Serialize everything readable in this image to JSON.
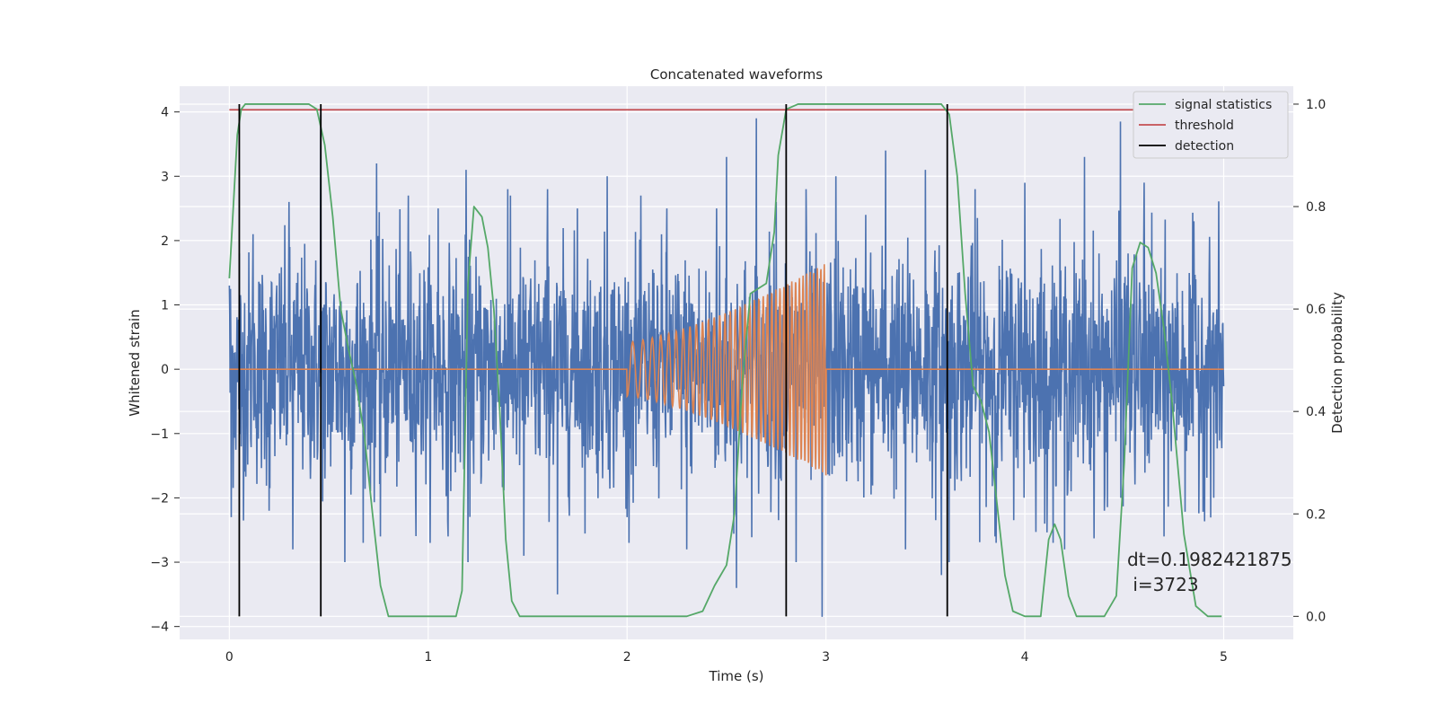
{
  "chart_data": {
    "type": "line",
    "title": "Concatenated waveforms",
    "xlabel": "Time (s)",
    "ylabel_left": "Whitened strain",
    "ylabel_right": "Detection probability",
    "xlim": [
      -0.25,
      5.35
    ],
    "ylim_left": [
      -4.2,
      4.4
    ],
    "ylim_right": [
      -0.045,
      1.035
    ],
    "x_ticks": [
      0,
      1,
      2,
      3,
      4,
      5
    ],
    "y_ticks_left": [
      -4,
      -3,
      -2,
      -1,
      0,
      1,
      2,
      3,
      4
    ],
    "y_ticks_right": [
      0.0,
      0.2,
      0.4,
      0.6,
      0.8,
      1.0
    ],
    "grid": true,
    "legend_position": "top-right",
    "series": [
      {
        "kind": "noise",
        "color": "#4c72b0",
        "x_range": [
          0,
          5
        ],
        "typical_amplitude": 1.3,
        "peaks": [
          [
            0.0,
            1.3
          ],
          [
            0.01,
            -2.3
          ],
          [
            0.05,
            1.8
          ],
          [
            0.06,
            -1.2
          ],
          [
            0.12,
            2.1
          ],
          [
            0.2,
            -2.2
          ],
          [
            0.3,
            2.6
          ],
          [
            0.32,
            -2.8
          ],
          [
            0.46,
            3.95
          ],
          [
            0.48,
            -1.7
          ],
          [
            0.58,
            3.15
          ],
          [
            0.58,
            -3.0
          ],
          [
            0.74,
            3.2
          ],
          [
            0.76,
            -2.6
          ],
          [
            0.9,
            2.7
          ],
          [
            1.05,
            2.5
          ],
          [
            1.1,
            -2.6
          ],
          [
            1.19,
            3.1
          ],
          [
            1.2,
            -3.0
          ],
          [
            1.4,
            2.8
          ],
          [
            1.48,
            -2.9
          ],
          [
            1.6,
            2.8
          ],
          [
            1.65,
            -3.5
          ],
          [
            1.75,
            2.5
          ],
          [
            1.9,
            3.0
          ],
          [
            2.0,
            -2.3
          ],
          [
            2.2,
            2.5
          ],
          [
            2.3,
            -2.8
          ],
          [
            2.45,
            2.5
          ],
          [
            2.5,
            3.3
          ],
          [
            2.55,
            -3.4
          ],
          [
            2.65,
            3.9
          ],
          [
            2.75,
            2.6
          ],
          [
            2.85,
            -3.0
          ],
          [
            2.9,
            2.8
          ],
          [
            2.98,
            -3.85
          ],
          [
            3.05,
            3.0
          ],
          [
            3.2,
            2.4
          ],
          [
            3.3,
            3.4
          ],
          [
            3.4,
            -2.8
          ],
          [
            3.5,
            3.1
          ],
          [
            3.58,
            -3.2
          ],
          [
            3.62,
            -3.0
          ],
          [
            3.75,
            2.8
          ],
          [
            3.85,
            -2.6
          ],
          [
            4.0,
            2.9
          ],
          [
            4.1,
            -2.4
          ],
          [
            4.2,
            -2.8
          ],
          [
            4.3,
            3.3
          ],
          [
            4.4,
            -2.2
          ],
          [
            4.48,
            3.85
          ],
          [
            4.52,
            1.8
          ],
          [
            4.6,
            2.9
          ],
          [
            4.7,
            -2.6
          ],
          [
            4.85,
            2.3
          ],
          [
            4.95,
            -2.0
          ]
        ]
      },
      {
        "kind": "chirp",
        "color": "#dd8452",
        "x_range": [
          0,
          5
        ],
        "chirp_start": 2.0,
        "chirp_end": 3.0,
        "amplitude_start": 0.42,
        "amplitude_end": 1.65,
        "cycles": 38
      },
      {
        "name": "signal statistics",
        "axis": "right",
        "color": "#55a868",
        "x": [
          0.0,
          0.02,
          0.04,
          0.06,
          0.08,
          0.4,
          0.44,
          0.48,
          0.52,
          0.56,
          0.6,
          0.64,
          0.68,
          0.72,
          0.76,
          0.8,
          1.14,
          1.17,
          1.2,
          1.23,
          1.27,
          1.3,
          1.33,
          1.36,
          1.39,
          1.42,
          1.46,
          1.5,
          2.3,
          2.38,
          2.44,
          2.5,
          2.54,
          2.58,
          2.62,
          2.66,
          2.7,
          2.74,
          2.76,
          2.8,
          2.86,
          3.58,
          3.62,
          3.66,
          3.7,
          3.74,
          3.78,
          3.82,
          3.86,
          3.9,
          3.94,
          4.0,
          4.08,
          4.12,
          4.15,
          4.18,
          4.22,
          4.26,
          4.4,
          4.46,
          4.5,
          4.54,
          4.58,
          4.62,
          4.66,
          4.7,
          4.74,
          4.8,
          4.86,
          4.92,
          4.99
        ],
        "values": [
          0.66,
          0.8,
          0.94,
          0.99,
          1.0,
          1.0,
          0.99,
          0.92,
          0.78,
          0.6,
          0.52,
          0.45,
          0.35,
          0.2,
          0.06,
          0.0,
          0.0,
          0.05,
          0.65,
          0.8,
          0.78,
          0.72,
          0.6,
          0.4,
          0.15,
          0.03,
          0.0,
          0.0,
          0.0,
          0.01,
          0.06,
          0.1,
          0.2,
          0.46,
          0.63,
          0.64,
          0.65,
          0.75,
          0.9,
          0.99,
          1.0,
          1.0,
          0.98,
          0.86,
          0.63,
          0.45,
          0.42,
          0.36,
          0.22,
          0.08,
          0.01,
          0.0,
          0.0,
          0.15,
          0.18,
          0.15,
          0.04,
          0.0,
          0.0,
          0.04,
          0.3,
          0.68,
          0.73,
          0.72,
          0.67,
          0.56,
          0.42,
          0.16,
          0.02,
          0.0,
          0.0
        ]
      },
      {
        "name": "threshold",
        "axis": "right",
        "color": "#c44e52",
        "x": [
          0,
          5
        ],
        "values": [
          0.989,
          0.989
        ]
      },
      {
        "name": "detection",
        "axis": "right",
        "kind": "vlines",
        "color": "#000000",
        "x": [
          0.05,
          0.46,
          2.8,
          3.61
        ],
        "range": [
          0.0,
          1.0
        ]
      }
    ],
    "annotation": [
      "dt=0.1982421875",
      " i=3723"
    ]
  }
}
